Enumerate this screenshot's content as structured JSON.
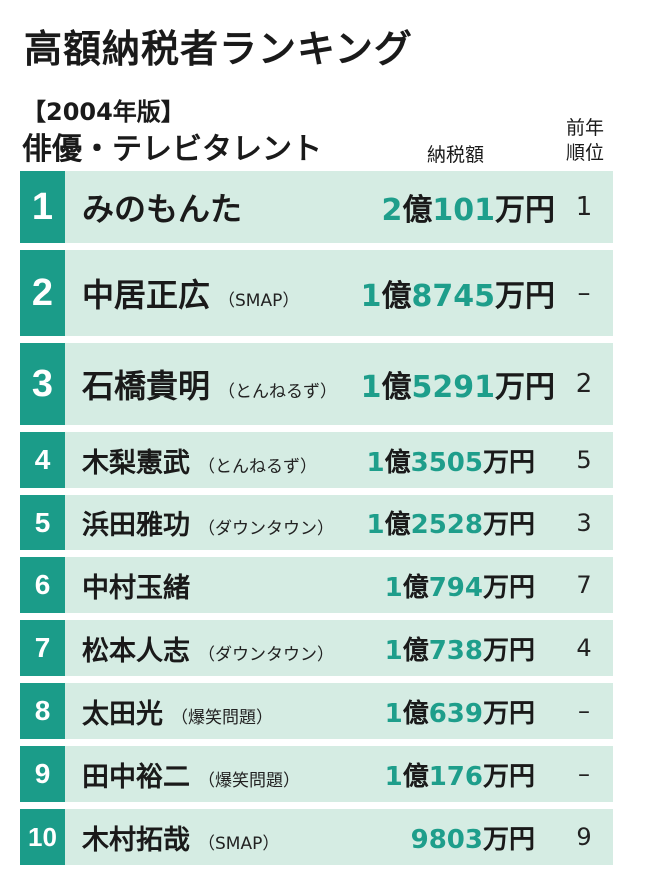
{
  "title": "高額納税者ランキング",
  "year_label": "【2004年版】",
  "category": "俳優・テレビタレント",
  "col_tax": "納税額",
  "col_prev_line1": "前年",
  "col_prev_line2": "順位",
  "rows": [
    {
      "rank": "1",
      "name": "みのもんた",
      "group": "",
      "amount_a": "2",
      "unit_a": "億",
      "amount_b": "101",
      "unit_b": "万円",
      "prev": "1"
    },
    {
      "rank": "2",
      "name": "中居正広",
      "group": "（SMAP）",
      "amount_a": "1",
      "unit_a": "億",
      "amount_b": "8745",
      "unit_b": "万円",
      "prev": "–"
    },
    {
      "rank": "3",
      "name": "石橋貴明",
      "group": "（とんねるず）",
      "amount_a": "1",
      "unit_a": "億",
      "amount_b": "5291",
      "unit_b": "万円",
      "prev": "2"
    },
    {
      "rank": "4",
      "name": "木梨憲武",
      "group": "（とんねるず）",
      "amount_a": "1",
      "unit_a": "億",
      "amount_b": "3505",
      "unit_b": "万円",
      "prev": "5"
    },
    {
      "rank": "5",
      "name": "浜田雅功",
      "group": "（ダウンタウン）",
      "amount_a": "1",
      "unit_a": "億",
      "amount_b": "2528",
      "unit_b": "万円",
      "prev": "3"
    },
    {
      "rank": "6",
      "name": "中村玉緒",
      "group": "",
      "amount_a": "1",
      "unit_a": "億",
      "amount_b": "794",
      "unit_b": "万円",
      "prev": "7"
    },
    {
      "rank": "7",
      "name": "松本人志",
      "group": "（ダウンタウン）",
      "amount_a": "1",
      "unit_a": "億",
      "amount_b": "738",
      "unit_b": "万円",
      "prev": "4"
    },
    {
      "rank": "8",
      "name": "太田光",
      "group": "（爆笑問題）",
      "amount_a": "1",
      "unit_a": "億",
      "amount_b": "639",
      "unit_b": "万円",
      "prev": "–"
    },
    {
      "rank": "9",
      "name": "田中裕二",
      "group": "（爆笑問題）",
      "amount_a": "1",
      "unit_a": "億",
      "amount_b": "176",
      "unit_b": "万円",
      "prev": "–"
    },
    {
      "rank": "10",
      "name": "木村拓哉",
      "group": "（SMAP）",
      "amount_a": "",
      "unit_a": "",
      "amount_b": "9803",
      "unit_b": "万円",
      "prev": "9"
    }
  ]
}
